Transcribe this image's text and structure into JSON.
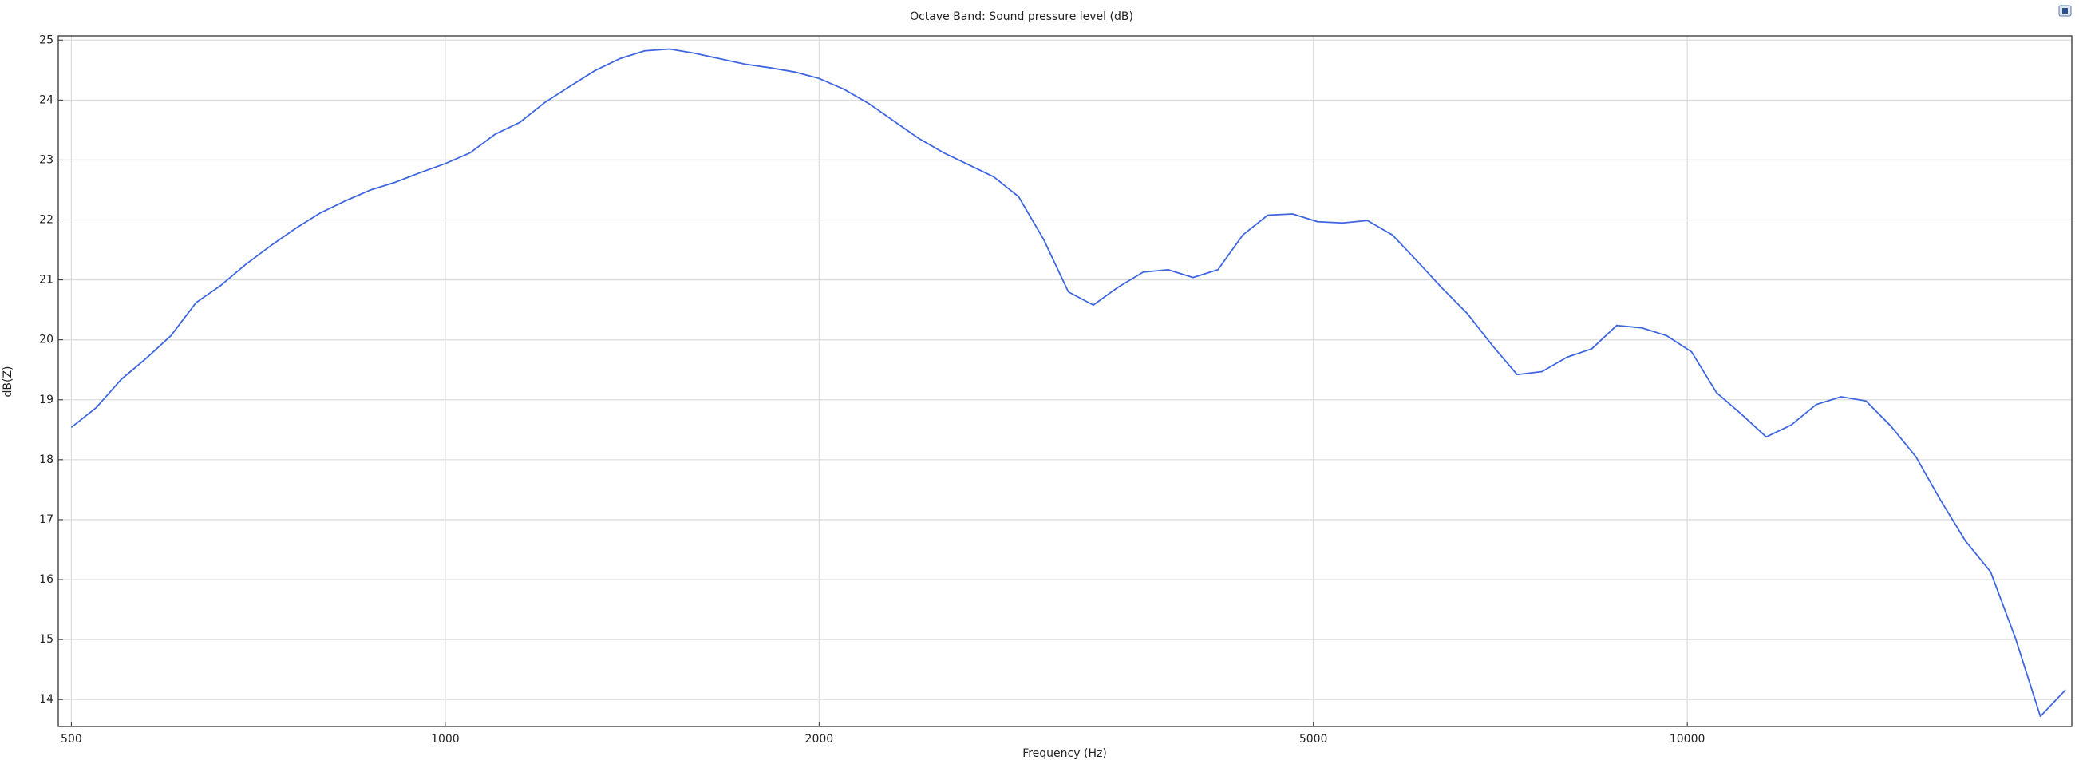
{
  "chart_data": {
    "type": "line",
    "title": "Octave Band: Sound pressure level (dB)",
    "x_label": "Frequency (Hz)",
    "y_label": "dB(Z)",
    "log_x": true,
    "grid": true,
    "xlim": [
      488,
      20400
    ],
    "xticks": [
      500,
      1000,
      2000,
      5000,
      10000
    ],
    "ylim": [
      13.55,
      25.07
    ],
    "yticks": [
      14,
      15,
      16,
      17,
      18,
      19,
      20,
      21,
      22,
      23,
      24,
      25
    ],
    "x": [
      500,
      523.6,
      548.4,
      574.3,
      601.4,
      630,
      659.8,
      691,
      723.6,
      757.9,
      793.7,
      831.3,
      870.6,
      911.8,
      954.9,
      1000,
      1047.2,
      1096.8,
      1148.6,
      1202.8,
      1260,
      1319.6,
      1382,
      1447.2,
      1515.8,
      1587.4,
      1662.6,
      1741.2,
      1823.6,
      1909.8,
      2000,
      2094.4,
      2193.6,
      2297.2,
      2405.6,
      2520,
      2639.2,
      2764,
      2894.4,
      3031.6,
      3174.8,
      3325.2,
      3482.4,
      3647.2,
      3819.6,
      4000,
      4188.8,
      4387.2,
      4594.4,
      4811.2,
      5040,
      5278.4,
      5528,
      5788.8,
      6063.2,
      6349.6,
      6650.4,
      6964.8,
      7294.4,
      7639.2,
      8000,
      8377.6,
      8774.4,
      9188.8,
      9622.4,
      10080,
      10556.8,
      11056,
      11577.6,
      12126.4,
      12699.2,
      13300.8,
      13929.6,
      14588.8,
      15278.4,
      16000,
      16755.2,
      17548.8,
      18377.6,
      19244.8,
      20160
    ],
    "series": [
      {
        "color": "#3f66e0",
        "values": [
          18.54,
          18.87,
          19.34,
          19.69,
          20.07,
          20.62,
          20.91,
          21.26,
          21.57,
          21.86,
          22.12,
          22.32,
          22.5,
          22.63,
          22.79,
          22.94,
          23.12,
          23.43,
          23.63,
          23.96,
          24.23,
          24.49,
          24.69,
          24.82,
          24.85,
          24.78,
          24.69,
          24.6,
          24.54,
          24.47,
          24.36,
          24.18,
          23.94,
          23.65,
          23.36,
          23.12,
          22.92,
          22.72,
          22.39,
          21.68,
          20.8,
          20.58,
          20.88,
          21.13,
          21.17,
          21.04,
          21.17,
          21.75,
          22.08,
          22.1,
          21.97,
          21.95,
          21.99,
          21.75,
          21.31,
          20.86,
          20.44,
          19.91,
          19.42,
          19.47,
          19.71,
          19.85,
          20.24,
          20.2,
          20.07,
          19.8,
          19.12,
          18.76,
          18.38,
          18.58,
          18.92,
          19.05,
          18.98,
          18.56,
          18.05,
          17.32,
          16.64,
          16.13,
          15.02,
          13.72,
          14.16
        ]
      }
    ]
  }
}
